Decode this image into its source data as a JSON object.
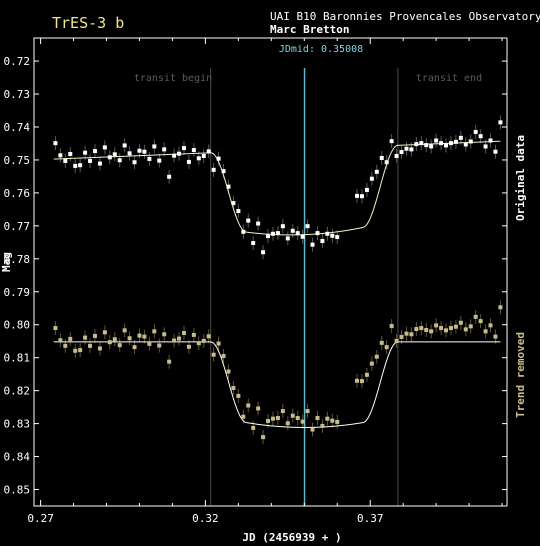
{
  "chart_data": {
    "type": "scatter",
    "title": "TrES-3 b",
    "observatory": "UAI B10 Baronnies Provencales Observatory",
    "observer": "Marc Bretton",
    "xlabel": "JD (2456939 + )",
    "ylabel": "Mag",
    "xlim": [
      0.268,
      0.4115
    ],
    "ylim": [
      0.855,
      0.713
    ],
    "x_ticks": [
      0.27,
      0.32,
      0.37
    ],
    "x_tick_labels": [
      "0.27",
      "0.32",
      "0.37"
    ],
    "y_ticks": [
      0.72,
      0.73,
      0.74,
      0.75,
      0.76,
      0.77,
      0.78,
      0.79,
      0.8,
      0.81,
      0.82,
      0.83,
      0.84,
      0.85
    ],
    "y_tick_labels": [
      "0.72",
      "0.73",
      "0.74",
      "0.75",
      "0.76",
      "0.77",
      "0.78",
      "0.79",
      "0.80",
      "0.81",
      "0.82",
      "0.83",
      "0.84",
      "0.85"
    ],
    "grid": false,
    "annotations": {
      "transit_begin": {
        "label": "transit begin",
        "x": 0.3216
      },
      "transit_end": {
        "label": "transit end",
        "x": 0.3784
      },
      "jdmid": {
        "label": "JDmid: 0.35008",
        "x": 0.35008
      }
    },
    "model": {
      "t1": 0.3216,
      "t2": 0.3325,
      "t3": 0.3677,
      "t4": 0.3784,
      "depth": 0.0245
    },
    "series": [
      {
        "side_label": "Original data",
        "color": "#ffffff",
        "baseline": 0.7487,
        "trend_per_jd": -0.04,
        "x": [
          0.2745,
          0.276,
          0.2775,
          0.279,
          0.2805,
          0.282,
          0.2835,
          0.285,
          0.2865,
          0.288,
          0.2895,
          0.291,
          0.2925,
          0.294,
          0.2955,
          0.297,
          0.2985,
          0.3,
          0.3015,
          0.303,
          0.3045,
          0.306,
          0.3075,
          0.309,
          0.3105,
          0.312,
          0.3135,
          0.315,
          0.3165,
          0.318,
          0.3195,
          0.321,
          0.3225,
          0.324,
          0.3255,
          0.327,
          0.3285,
          0.33,
          0.3315,
          0.333,
          0.3345,
          0.336,
          0.3375,
          0.339,
          0.3405,
          0.342,
          0.3435,
          0.345,
          0.3465,
          0.348,
          0.3495,
          0.351,
          0.3525,
          0.354,
          0.3555,
          0.357,
          0.3585,
          0.36,
          0.366,
          0.3675,
          0.369,
          0.3705,
          0.372,
          0.3735,
          0.375,
          0.3765,
          0.378,
          0.3795,
          0.381,
          0.3825,
          0.384,
          0.3855,
          0.387,
          0.3885,
          0.39,
          0.3915,
          0.393,
          0.3945,
          0.396,
          0.3975,
          0.399,
          0.4005,
          0.402,
          0.4035,
          0.405,
          0.4065,
          0.408,
          0.4095
        ],
        "y": [
          0.7449,
          0.7486,
          0.7503,
          0.7482,
          0.7518,
          0.7516,
          0.7478,
          0.7503,
          0.7473,
          0.7511,
          0.7462,
          0.7492,
          0.7483,
          0.7501,
          0.7456,
          0.748,
          0.7507,
          0.7472,
          0.7475,
          0.7497,
          0.7459,
          0.7502,
          0.7468,
          0.7551,
          0.7487,
          0.7481,
          0.7464,
          0.7506,
          0.747,
          0.7495,
          0.7488,
          0.7474,
          0.753,
          0.7496,
          0.7534,
          0.7581,
          0.7631,
          0.7655,
          0.7718,
          0.7684,
          0.7752,
          0.7693,
          0.778,
          0.7731,
          0.7724,
          0.7722,
          0.7701,
          0.7738,
          0.7715,
          0.7722,
          0.7733,
          0.7701,
          0.7757,
          0.7722,
          0.7746,
          0.7724,
          0.773,
          0.7734,
          0.7609,
          0.761,
          0.7591,
          0.7557,
          0.7536,
          0.7494,
          0.7507,
          0.7443,
          0.7488,
          0.7476,
          0.7466,
          0.7468,
          0.7452,
          0.7449,
          0.7455,
          0.7459,
          0.7441,
          0.7449,
          0.7456,
          0.7449,
          0.7445,
          0.7433,
          0.7453,
          0.7444,
          0.7415,
          0.7428,
          0.7459,
          0.7441,
          0.7475,
          0.7386
        ]
      },
      {
        "side_label": "Trend removed",
        "color": "#c8bb8a",
        "baseline": 0.8052,
        "trend_per_jd": 0.0,
        "x": [
          0.2745,
          0.276,
          0.2775,
          0.279,
          0.2805,
          0.282,
          0.2835,
          0.285,
          0.2865,
          0.288,
          0.2895,
          0.291,
          0.2925,
          0.294,
          0.2955,
          0.297,
          0.2985,
          0.3,
          0.3015,
          0.303,
          0.3045,
          0.306,
          0.3075,
          0.309,
          0.3105,
          0.312,
          0.3135,
          0.315,
          0.3165,
          0.318,
          0.3195,
          0.321,
          0.3225,
          0.324,
          0.3255,
          0.327,
          0.3285,
          0.33,
          0.3315,
          0.333,
          0.3345,
          0.336,
          0.3375,
          0.339,
          0.3405,
          0.342,
          0.3435,
          0.345,
          0.3465,
          0.348,
          0.3495,
          0.351,
          0.3525,
          0.354,
          0.3555,
          0.357,
          0.3585,
          0.36,
          0.366,
          0.3675,
          0.369,
          0.3705,
          0.372,
          0.3735,
          0.375,
          0.3765,
          0.378,
          0.3795,
          0.381,
          0.3825,
          0.384,
          0.3855,
          0.387,
          0.3885,
          0.39,
          0.3915,
          0.393,
          0.3945,
          0.396,
          0.3975,
          0.399,
          0.4005,
          0.402,
          0.4035,
          0.405,
          0.4065,
          0.408,
          0.4095
        ],
        "y": [
          0.801,
          0.8047,
          0.8064,
          0.8043,
          0.8079,
          0.8077,
          0.8039,
          0.8064,
          0.8034,
          0.8072,
          0.8023,
          0.8053,
          0.8044,
          0.8062,
          0.8017,
          0.8041,
          0.8068,
          0.8033,
          0.8036,
          0.8058,
          0.802,
          0.8063,
          0.8029,
          0.8112,
          0.8048,
          0.8042,
          0.8025,
          0.8067,
          0.8031,
          0.8056,
          0.8049,
          0.8035,
          0.8091,
          0.8057,
          0.8095,
          0.8142,
          0.8192,
          0.8216,
          0.8279,
          0.8245,
          0.8313,
          0.8254,
          0.8341,
          0.8292,
          0.8285,
          0.8283,
          0.8262,
          0.8299,
          0.8276,
          0.8283,
          0.8294,
          0.8262,
          0.8318,
          0.8283,
          0.8307,
          0.8285,
          0.8291,
          0.8295,
          0.817,
          0.8171,
          0.8152,
          0.8118,
          0.8097,
          0.8055,
          0.8068,
          0.8004,
          0.8049,
          0.8037,
          0.8027,
          0.8029,
          0.8013,
          0.801,
          0.8016,
          0.802,
          0.8002,
          0.801,
          0.8017,
          0.801,
          0.8006,
          0.7994,
          0.8014,
          0.8005,
          0.7976,
          0.7989,
          0.802,
          0.8002,
          0.8036,
          0.7947
        ]
      }
    ]
  }
}
